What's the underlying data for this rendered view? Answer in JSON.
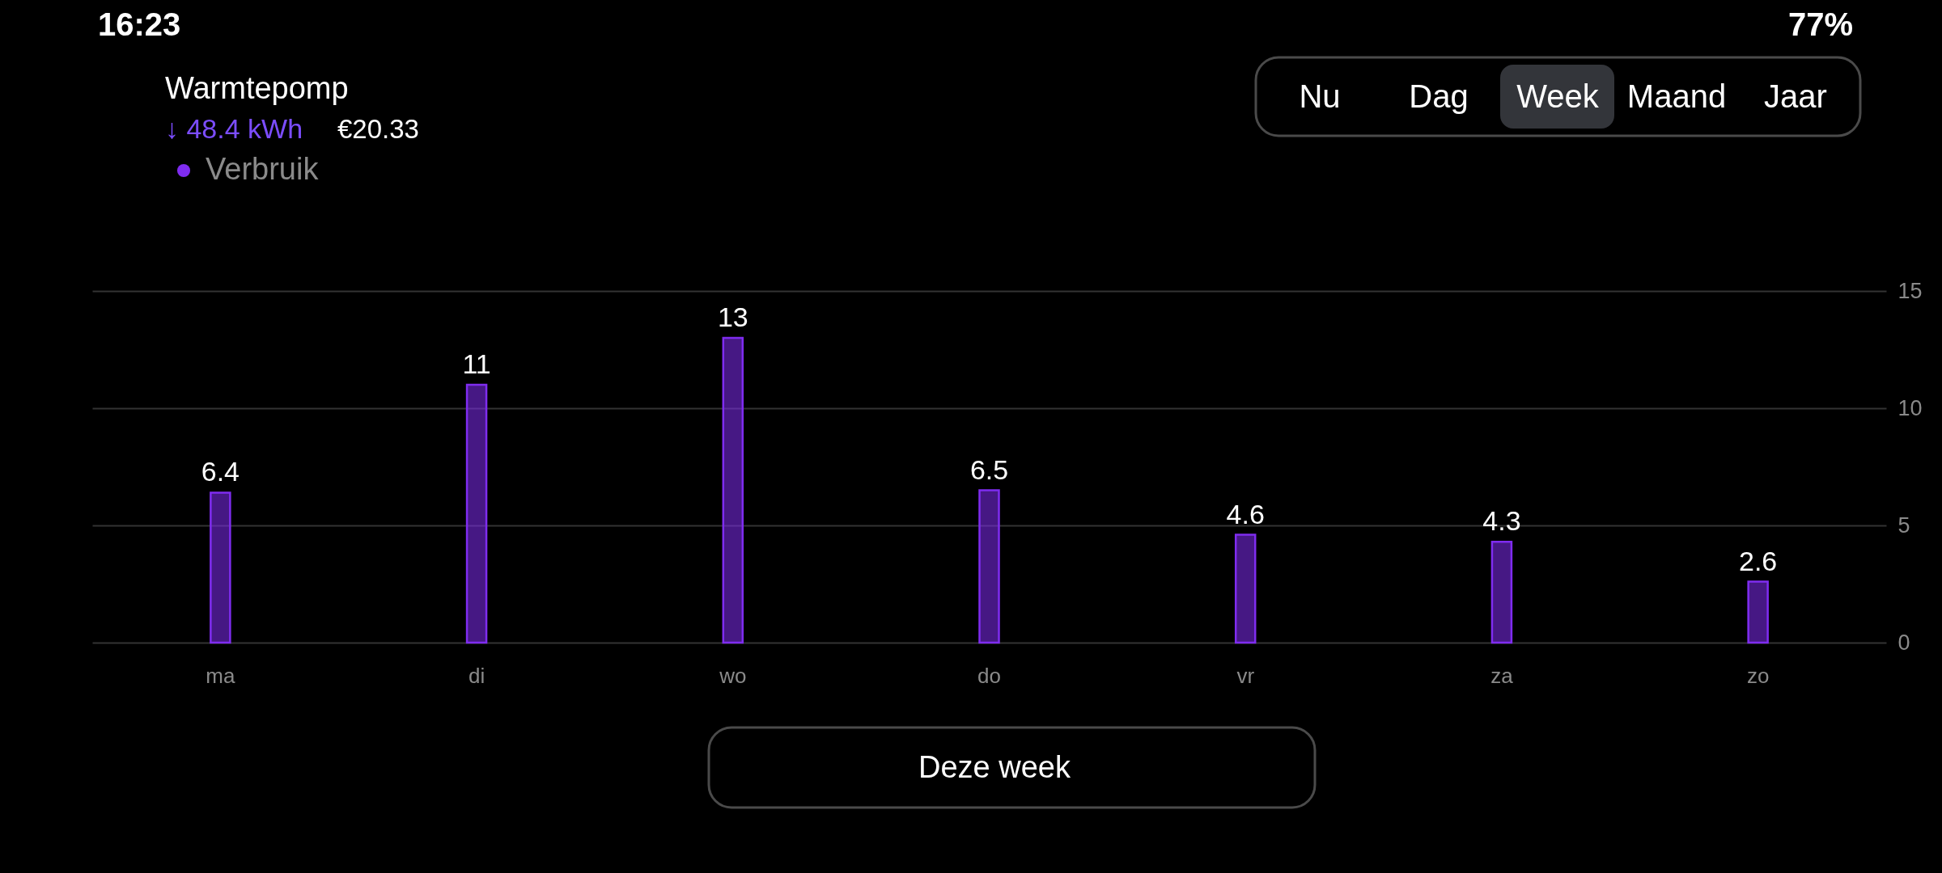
{
  "chart_data": {
    "type": "bar",
    "title": "Warmtepomp",
    "subtitle": "↓ 48.4 kWh",
    "annotations": [
      "16:23",
      "77%",
      "€20.33",
      "Nu",
      "Dag",
      "Week",
      "Maand",
      "Jaar",
      "Deze week"
    ],
    "categories": [
      "ma",
      "di",
      "wo",
      "do",
      "vr",
      "za",
      "zo"
    ],
    "series": [
      {
        "name": "Verbruik",
        "color": "#7f2cf0",
        "values": [
          6.4,
          11,
          13,
          6.5,
          4.6,
          4.3,
          2.6
        ]
      }
    ],
    "ylim": [
      0,
      15
    ],
    "yticks": [
      0,
      5,
      10,
      15
    ],
    "grid": "y",
    "legend": "top left",
    "data_labels": true
  }
}
